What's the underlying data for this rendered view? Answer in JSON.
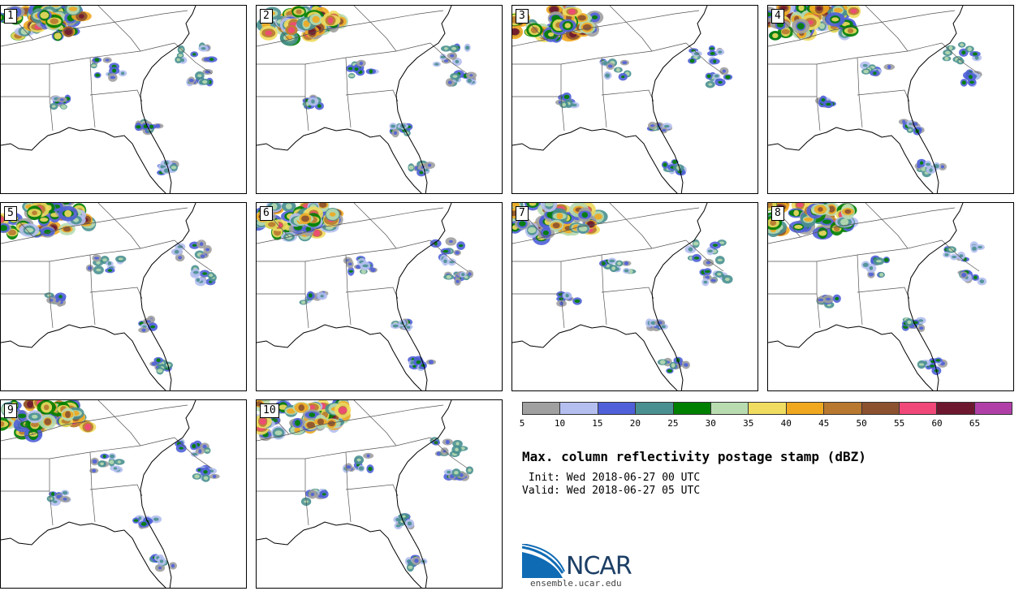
{
  "title": "Max. column reflectivity postage stamp (dBZ)",
  "init_text": "Init: Wed 2018-06-27 00 UTC",
  "valid_text": "Valid: Wed 2018-06-27 05 UTC",
  "logo": {
    "name": "NCAR",
    "url": "ensemble.ucar.edu"
  },
  "members": [
    "1",
    "2",
    "3",
    "4",
    "5",
    "6",
    "7",
    "8",
    "9",
    "10"
  ],
  "colorbar": {
    "ticks": [
      "5",
      "10",
      "15",
      "20",
      "25",
      "30",
      "35",
      "40",
      "45",
      "50",
      "55",
      "60",
      "65"
    ],
    "colors": [
      "#a0a0a0",
      "#b4bff0",
      "#5060d8",
      "#4a9090",
      "#008000",
      "#b8dcb0",
      "#f0dc60",
      "#f0a820",
      "#b87830",
      "#8c5230",
      "#f04878",
      "#6e1830",
      "#b040a8"
    ]
  }
}
